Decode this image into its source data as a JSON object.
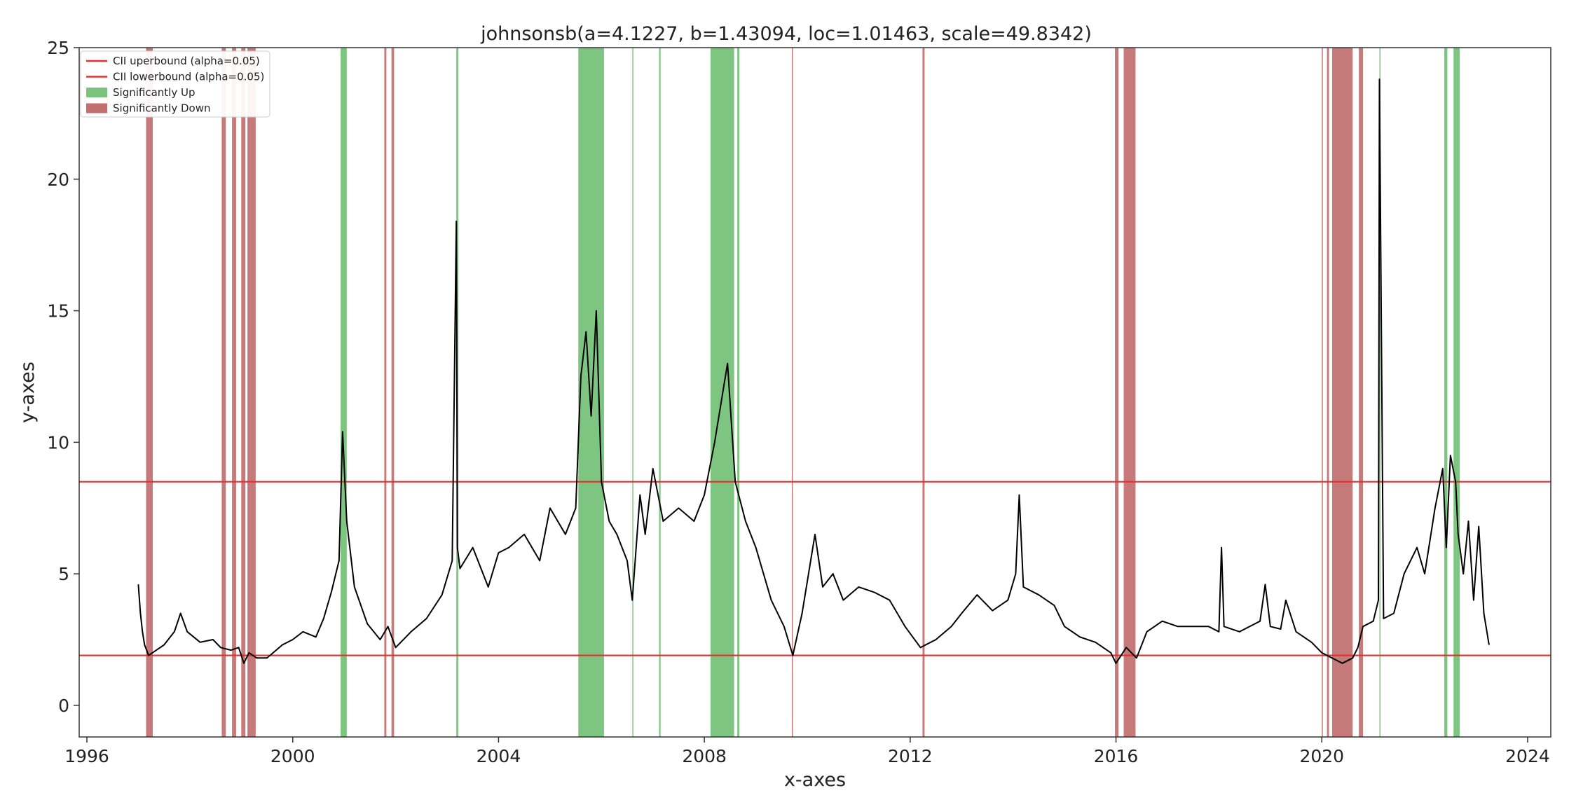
{
  "chart_data": {
    "type": "line",
    "title": "johnsonsb(a=4.1227, b=1.43094, loc=1.01463, scale=49.8342)",
    "xlabel": "x-axes",
    "ylabel": "y-axes",
    "xlim": [
      1995.85,
      2024.45
    ],
    "ylim": [
      -1.2,
      25
    ],
    "xticks": [
      1996,
      2000,
      2004,
      2008,
      2012,
      2016,
      2020,
      2024
    ],
    "yticks": [
      0,
      5,
      10,
      15,
      20,
      25
    ],
    "grid": false,
    "legend_placement": "top-left",
    "legend": [
      {
        "label": "CII uperbound (alpha=0.05)",
        "kind": "line",
        "color": "#e03030"
      },
      {
        "label": "CII lowerbound (alpha=0.05)",
        "kind": "line",
        "color": "#e03030"
      },
      {
        "label": "Significantly Up",
        "kind": "patch",
        "color": "#4caf50"
      },
      {
        "label": "Significantly Down",
        "kind": "patch",
        "color": "#a83232"
      }
    ],
    "hlines": [
      {
        "name": "CII uperbound (alpha=0.05)",
        "y": 8.5,
        "color": "#e03030"
      },
      {
        "name": "CII lowerbound (alpha=0.05)",
        "y": 1.9,
        "color": "#e03030"
      }
    ],
    "up_spans": [
      [
        2000.93,
        2001.05
      ],
      [
        2003.18,
        2003.22
      ],
      [
        2005.55,
        2006.05
      ],
      [
        2006.6,
        2006.62
      ],
      [
        2007.12,
        2007.15
      ],
      [
        2008.12,
        2008.58
      ],
      [
        2008.64,
        2008.68
      ],
      [
        2021.12,
        2021.14
      ],
      [
        2022.38,
        2022.44
      ],
      [
        2022.56,
        2022.68
      ]
    ],
    "down_spans": [
      [
        1997.15,
        1997.28
      ],
      [
        1998.62,
        1998.7
      ],
      [
        1998.82,
        1998.9
      ],
      [
        1999.0,
        1999.08
      ],
      [
        1999.12,
        1999.28
      ],
      [
        2001.78,
        2001.82
      ],
      [
        2001.92,
        2001.97
      ],
      [
        2009.7,
        2009.72
      ],
      [
        2012.24,
        2012.28
      ],
      [
        2015.98,
        2016.05
      ],
      [
        2016.15,
        2016.38
      ],
      [
        2020.0,
        2020.02
      ],
      [
        2020.1,
        2020.14
      ],
      [
        2020.2,
        2020.6
      ],
      [
        2020.72,
        2020.8
      ]
    ],
    "series": [
      {
        "name": "",
        "color": "#000000",
        "x": [
          1997.0,
          1997.04,
          1997.08,
          1997.12,
          1997.2,
          1997.35,
          1997.5,
          1997.7,
          1997.82,
          1997.95,
          1998.2,
          1998.45,
          1998.6,
          1998.8,
          1998.95,
          1999.05,
          1999.15,
          1999.3,
          1999.5,
          1999.8,
          2000.0,
          2000.2,
          2000.45,
          2000.6,
          2000.75,
          2000.9,
          2000.97,
          2001.05,
          2001.2,
          2001.45,
          2001.7,
          2001.85,
          2002.0,
          2002.3,
          2002.6,
          2002.9,
          2003.1,
          2003.18,
          2003.2,
          2003.25,
          2003.5,
          2003.8,
          2004.0,
          2004.2,
          2004.5,
          2004.8,
          2005.0,
          2005.3,
          2005.5,
          2005.6,
          2005.7,
          2005.8,
          2005.9,
          2006.0,
          2006.15,
          2006.3,
          2006.5,
          2006.6,
          2006.75,
          2006.85,
          2007.0,
          2007.2,
          2007.5,
          2007.8,
          2008.0,
          2008.2,
          2008.45,
          2008.6,
          2008.8,
          2009.0,
          2009.3,
          2009.55,
          2009.72,
          2009.9,
          2010.15,
          2010.3,
          2010.5,
          2010.7,
          2011.0,
          2011.3,
          2011.6,
          2011.9,
          2012.2,
          2012.5,
          2012.8,
          2013.0,
          2013.3,
          2013.6,
          2013.9,
          2014.05,
          2014.12,
          2014.2,
          2014.5,
          2014.8,
          2015.0,
          2015.3,
          2015.6,
          2015.9,
          2016.0,
          2016.2,
          2016.4,
          2016.6,
          2016.9,
          2017.2,
          2017.5,
          2017.8,
          2018.0,
          2018.05,
          2018.1,
          2018.4,
          2018.8,
          2018.9,
          2019.0,
          2019.2,
          2019.3,
          2019.5,
          2019.8,
          2020.0,
          2020.2,
          2020.4,
          2020.6,
          2020.7,
          2020.8,
          2021.0,
          2021.1,
          2021.12,
          2021.2,
          2021.4,
          2021.6,
          2021.85,
          2022.0,
          2022.2,
          2022.35,
          2022.42,
          2022.5,
          2022.6,
          2022.65,
          2022.75,
          2022.85,
          2022.95,
          2023.05,
          2023.15,
          2023.25
        ],
        "values": [
          4.6,
          3.5,
          2.8,
          2.3,
          1.9,
          2.1,
          2.3,
          2.8,
          3.5,
          2.8,
          2.4,
          2.5,
          2.2,
          2.1,
          2.2,
          1.6,
          2.0,
          1.8,
          1.8,
          2.3,
          2.5,
          2.8,
          2.6,
          3.3,
          4.3,
          5.5,
          10.4,
          7.0,
          4.5,
          3.1,
          2.5,
          3.0,
          2.2,
          2.8,
          3.3,
          4.2,
          5.5,
          18.4,
          6.0,
          5.2,
          6.0,
          4.5,
          5.8,
          6.0,
          6.5,
          5.5,
          7.5,
          6.5,
          7.5,
          12.5,
          14.2,
          11.0,
          15.0,
          8.5,
          7.0,
          6.5,
          5.5,
          4.0,
          8.0,
          6.5,
          9.0,
          7.0,
          7.5,
          7.0,
          8.0,
          10.0,
          13.0,
          8.5,
          7.0,
          6.0,
          4.0,
          3.0,
          1.9,
          3.5,
          6.5,
          4.5,
          5.0,
          4.0,
          4.5,
          4.3,
          4.0,
          3.0,
          2.2,
          2.5,
          3.0,
          3.5,
          4.2,
          3.6,
          4.0,
          5.0,
          8.0,
          4.5,
          4.2,
          3.8,
          3.0,
          2.6,
          2.4,
          2.0,
          1.6,
          2.2,
          1.8,
          2.8,
          3.2,
          3.0,
          3.0,
          3.0,
          2.8,
          6.0,
          3.0,
          2.8,
          3.2,
          4.6,
          3.0,
          2.9,
          4.0,
          2.8,
          2.4,
          2.0,
          1.8,
          1.6,
          1.8,
          2.2,
          3.0,
          3.2,
          4.0,
          23.8,
          3.3,
          3.5,
          5.0,
          6.0,
          5.0,
          7.5,
          9.0,
          6.0,
          9.5,
          8.5,
          6.5,
          5.0,
          7.0,
          4.0,
          6.8,
          3.5,
          2.3
        ]
      }
    ]
  }
}
